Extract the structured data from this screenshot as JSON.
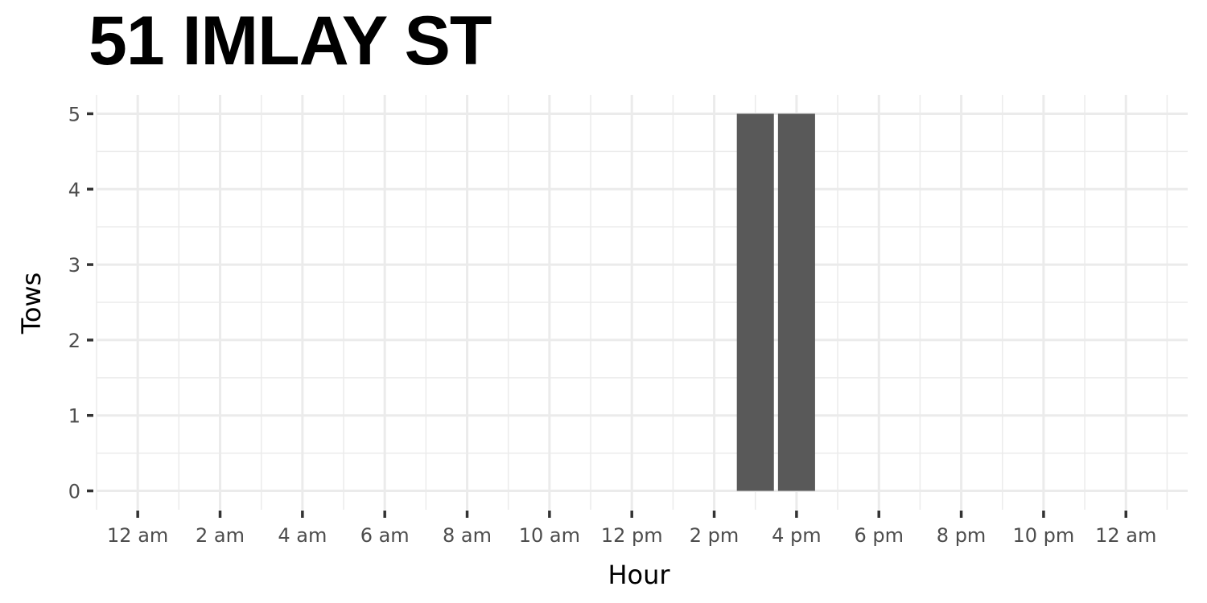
{
  "chart_data": {
    "type": "bar",
    "title": "51 IMLAY ST",
    "xlabel": "Hour",
    "ylabel": "Tows",
    "x_tick_labels": [
      "12 am",
      "2 am",
      "4 am",
      "6 am",
      "8 am",
      "10 am",
      "12 pm",
      "2 pm",
      "4 pm",
      "6 pm",
      "8 pm",
      "10 pm",
      "12 am"
    ],
    "x_tick_hours": [
      0,
      2,
      4,
      6,
      8,
      10,
      12,
      14,
      16,
      18,
      20,
      22,
      24
    ],
    "xlim": [
      -1,
      25.5
    ],
    "y_tick_labels": [
      "0",
      "1",
      "2",
      "3",
      "4",
      "5"
    ],
    "y_ticks": [
      0,
      1,
      2,
      3,
      4,
      5
    ],
    "ylim": [
      -0.25,
      5.25
    ],
    "bars": [
      {
        "hour": 15,
        "value": 5
      },
      {
        "hour": 16,
        "value": 5
      }
    ],
    "bar_color": "#595959",
    "grid_color": "#ebebeb",
    "grid": true,
    "legend": "none"
  }
}
